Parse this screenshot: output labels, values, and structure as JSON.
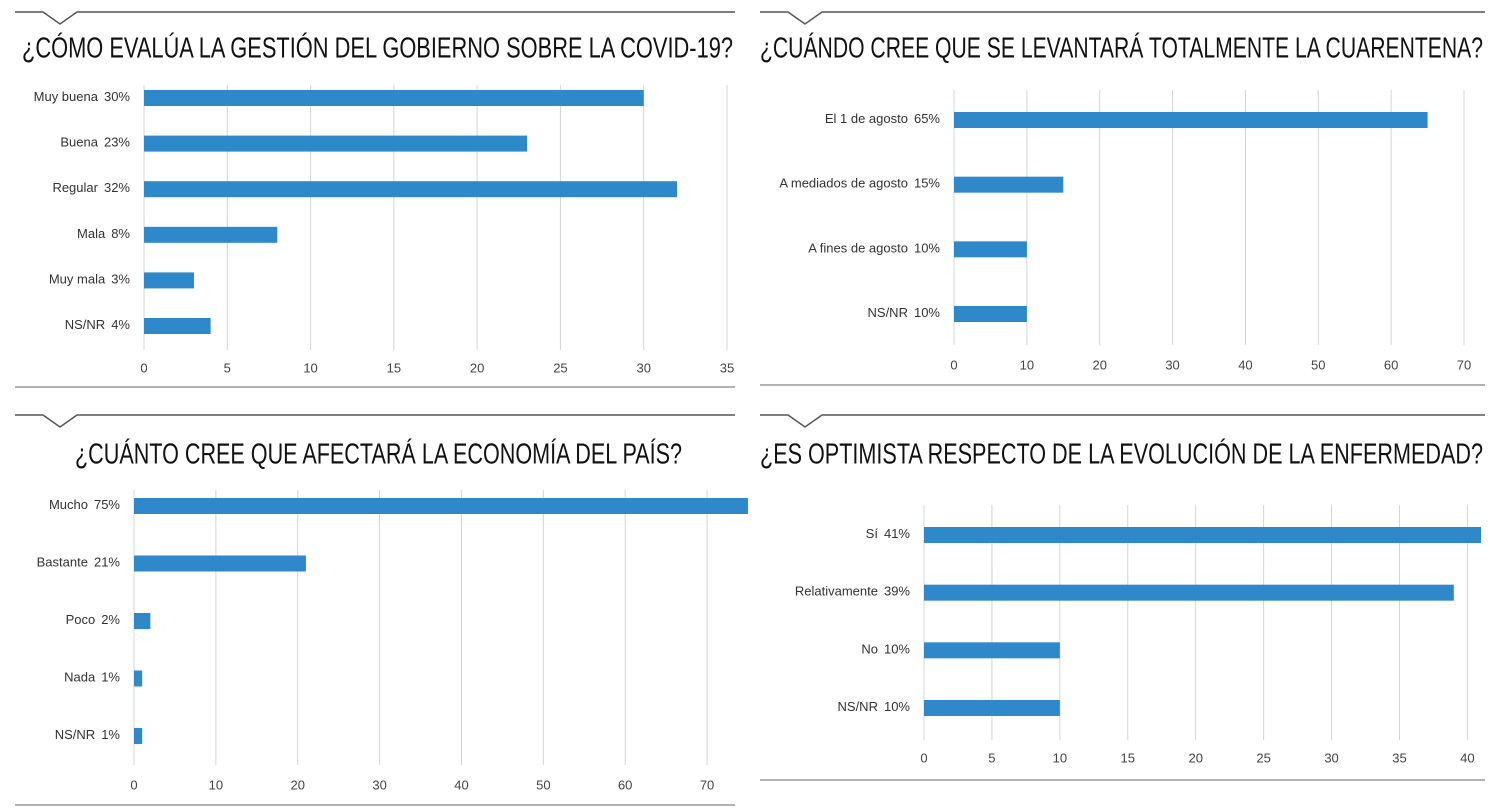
{
  "chart_data": [
    {
      "type": "bar",
      "orientation": "horizontal",
      "title": "¿CÓMO EVALÚA LA GESTIÓN DEL GOBIERNO SOBRE LA COVID-19?",
      "categories": [
        "Muy buena",
        "Buena",
        "Regular",
        "Mala",
        "Muy mala",
        "NS/NR"
      ],
      "values": [
        30,
        23,
        32,
        8,
        3,
        4
      ],
      "value_labels": [
        "30%",
        "23%",
        "32%",
        "8%",
        "3%",
        "4%"
      ],
      "color": "#2f88c9",
      "xlim": [
        0,
        35
      ],
      "xticks": [
        0,
        5,
        10,
        15,
        20,
        25,
        30,
        35
      ],
      "grid": true
    },
    {
      "type": "bar",
      "orientation": "horizontal",
      "title": "¿CUÁNDO CREE QUE SE LEVANTARÁ TOTALMENTE LA CUARENTENA?",
      "categories": [
        "El 1 de agosto",
        "A mediados de agosto",
        "A fines de agosto",
        "NS/NR"
      ],
      "values": [
        65,
        15,
        10,
        10
      ],
      "value_labels": [
        "65%",
        "15%",
        "10%",
        "10%"
      ],
      "color": "#2f88c9",
      "xlim": [
        0,
        70
      ],
      "xticks": [
        0,
        10,
        20,
        30,
        40,
        50,
        60,
        70
      ],
      "grid": true
    },
    {
      "type": "bar",
      "orientation": "horizontal",
      "title": "¿CUÁNTO CREE QUE AFECTARÁ LA ECONOMÍA DEL PAÍS?",
      "categories": [
        "Mucho",
        "Bastante",
        "Poco",
        "Nada",
        "NS/NR"
      ],
      "values": [
        75,
        21,
        2,
        1,
        1
      ],
      "value_labels": [
        "75%",
        "21%",
        "2%",
        "1%",
        "1%"
      ],
      "color": "#2f88c9",
      "xlim": [
        0,
        75
      ],
      "xticks": [
        0,
        10,
        20,
        30,
        40,
        50,
        60,
        70
      ],
      "grid": true
    },
    {
      "type": "bar",
      "orientation": "horizontal",
      "title": "¿ES OPTIMISTA RESPECTO DE LA EVOLUCIÓN DE LA ENFERMEDAD?",
      "categories": [
        "Sí",
        "Relativamente",
        "No",
        "NS/NR"
      ],
      "values": [
        41,
        39,
        10,
        10
      ],
      "value_labels": [
        "41%",
        "39%",
        "10%",
        "10%"
      ],
      "color": "#2f88c9",
      "xlim": [
        0,
        41
      ],
      "xticks": [
        0,
        5,
        10,
        15,
        20,
        25,
        30,
        35,
        40
      ],
      "grid": true
    }
  ]
}
